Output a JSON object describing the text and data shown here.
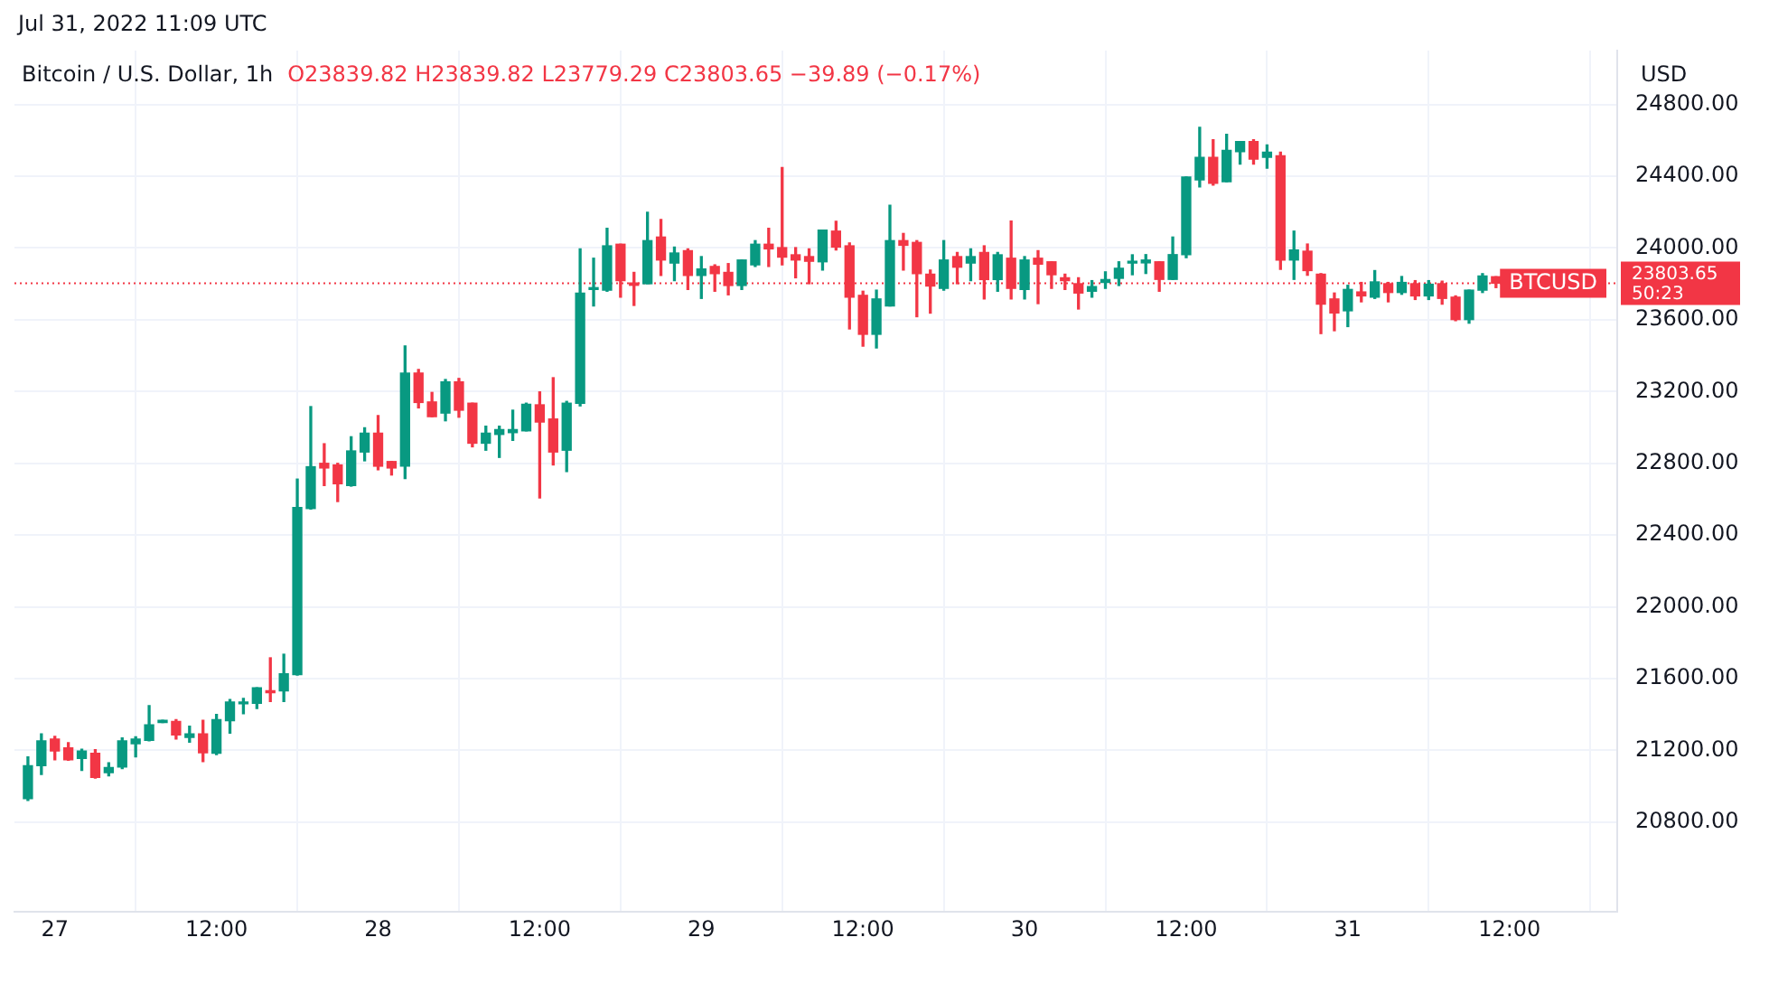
{
  "chart_data": {
    "type": "candlestick",
    "title": "Bitcoin / U.S. Dollar, 1h",
    "subtitle": "O23839.82 H23839.82 L23779.29 C23803.65 −39.89 (−0.17%)",
    "ylabel": "USD",
    "annotations": [
      "Jul 31, 2022 11:09 UTC",
      "23803.65",
      "50:23"
    ],
    "colors": [
      "#089981",
      "#089981",
      "#f23645",
      "#f23645",
      "#089981",
      "#f23645",
      "#089981",
      "#089981",
      "#089981",
      "#089981",
      "#089981",
      "#f23645",
      "#089981",
      "#f23645",
      "#089981",
      "#089981",
      "#089981",
      "#089981",
      "#f23645",
      "#089981",
      "#089981",
      "#089981",
      "#f23645",
      "#f23645",
      "#089981",
      "#089981",
      "#f23645",
      "#f23645",
      "#089981",
      "#f23645",
      "#f23645",
      "#089981",
      "#f23645",
      "#f23645",
      "#089981",
      "#089981",
      "#089981",
      "#089981",
      "#f23645",
      "#f23645",
      "#089981",
      "#089981",
      "#089981",
      "#089981",
      "#f23645",
      "#f23645",
      "#089981",
      "#f23645",
      "#089981",
      "#f23645",
      "#089981",
      "#f23645",
      "#f23645",
      "#089981",
      "#089981",
      "#f23645",
      "#f23645",
      "#f23645",
      "#f23645",
      "#089981",
      "#f23645",
      "#f23645",
      "#f23645",
      "#089981",
      "#089981",
      "#f23645",
      "#f23645",
      "#f23645",
      "#089981",
      "#f23645",
      "#089981",
      "#f23645",
      "#089981",
      "#f23645",
      "#089981",
      "#f23645",
      "#f23645",
      "#f23645",
      "#f23645",
      "#089981",
      "#089981",
      "#089981",
      "#089981",
      "#089981",
      "#f23645",
      "#089981",
      "#089981",
      "#089981",
      "#f23645",
      "#089981",
      "#089981",
      "#f23645",
      "#089981",
      "#f23645",
      "#089981",
      "#f23645",
      "#f23645",
      "#f23645",
      "#089981",
      "#f23645",
      "#089981",
      "#f23645",
      "#089981",
      "#f23645",
      "#089981",
      "#f23645",
      "#f23645",
      "#089981",
      "#089981",
      "#f23645"
    ],
    "x": [
      "2022-07-26T22:00",
      "2022-07-26T23:00",
      "2022-07-27T00:00",
      "2022-07-27T01:00",
      "2022-07-27T02:00",
      "2022-07-27T03:00",
      "2022-07-27T04:00",
      "2022-07-27T05:00",
      "2022-07-27T06:00",
      "2022-07-27T07:00",
      "2022-07-27T08:00",
      "2022-07-27T09:00",
      "2022-07-27T10:00",
      "2022-07-27T11:00",
      "2022-07-27T12:00",
      "2022-07-27T13:00",
      "2022-07-27T14:00",
      "2022-07-27T15:00",
      "2022-07-27T16:00",
      "2022-07-27T17:00",
      "2022-07-27T18:00",
      "2022-07-27T19:00",
      "2022-07-27T20:00",
      "2022-07-27T21:00",
      "2022-07-27T22:00",
      "2022-07-27T23:00",
      "2022-07-28T00:00",
      "2022-07-28T01:00",
      "2022-07-28T02:00",
      "2022-07-28T03:00",
      "2022-07-28T04:00",
      "2022-07-28T05:00",
      "2022-07-28T06:00",
      "2022-07-28T07:00",
      "2022-07-28T08:00",
      "2022-07-28T09:00",
      "2022-07-28T10:00",
      "2022-07-28T11:00",
      "2022-07-28T12:00",
      "2022-07-28T13:00",
      "2022-07-28T14:00",
      "2022-07-28T15:00",
      "2022-07-28T16:00",
      "2022-07-28T17:00",
      "2022-07-28T18:00",
      "2022-07-28T19:00",
      "2022-07-28T20:00",
      "2022-07-28T21:00",
      "2022-07-28T22:00",
      "2022-07-28T23:00",
      "2022-07-29T00:00",
      "2022-07-29T01:00",
      "2022-07-29T02:00",
      "2022-07-29T03:00",
      "2022-07-29T04:00",
      "2022-07-29T05:00",
      "2022-07-29T06:00",
      "2022-07-29T07:00",
      "2022-07-29T08:00",
      "2022-07-29T09:00",
      "2022-07-29T10:00",
      "2022-07-29T11:00",
      "2022-07-29T12:00",
      "2022-07-29T13:00",
      "2022-07-29T14:00",
      "2022-07-29T15:00",
      "2022-07-29T16:00",
      "2022-07-29T17:00",
      "2022-07-29T18:00",
      "2022-07-29T19:00",
      "2022-07-29T20:00",
      "2022-07-29T21:00",
      "2022-07-29T22:00",
      "2022-07-29T23:00",
      "2022-07-30T00:00",
      "2022-07-30T01:00",
      "2022-07-30T02:00",
      "2022-07-30T03:00",
      "2022-07-30T04:00",
      "2022-07-30T05:00",
      "2022-07-30T06:00",
      "2022-07-30T07:00",
      "2022-07-30T08:00",
      "2022-07-30T09:00",
      "2022-07-30T10:00",
      "2022-07-30T11:00",
      "2022-07-30T12:00",
      "2022-07-30T13:00",
      "2022-07-30T14:00",
      "2022-07-30T15:00",
      "2022-07-30T16:00",
      "2022-07-30T17:00",
      "2022-07-30T18:00",
      "2022-07-30T19:00",
      "2022-07-30T20:00",
      "2022-07-30T21:00",
      "2022-07-30T22:00",
      "2022-07-30T23:00",
      "2022-07-31T00:00",
      "2022-07-31T01:00",
      "2022-07-31T02:00",
      "2022-07-31T03:00",
      "2022-07-31T04:00",
      "2022-07-31T05:00",
      "2022-07-31T06:00",
      "2022-07-31T07:00",
      "2022-07-31T08:00",
      "2022-07-31T09:00",
      "2022-07-31T10:00",
      "2022-07-31T11:00"
    ],
    "ohlc": [
      [
        20931,
        21164,
        20921,
        21115
      ],
      [
        21115,
        21292,
        21066,
        21253
      ],
      [
        21263,
        21279,
        21148,
        21197
      ],
      [
        21214,
        21243,
        21145,
        21148
      ],
      [
        21155,
        21207,
        21089,
        21197
      ],
      [
        21184,
        21204,
        21046,
        21049
      ],
      [
        21076,
        21131,
        21059,
        21105
      ],
      [
        21108,
        21269,
        21099,
        21253
      ],
      [
        21237,
        21276,
        21164,
        21263
      ],
      [
        21256,
        21450,
        21253,
        21342
      ],
      [
        21355,
        21368,
        21355,
        21368
      ],
      [
        21361,
        21371,
        21263,
        21286
      ],
      [
        21273,
        21335,
        21246,
        21292
      ],
      [
        21292,
        21368,
        21138,
        21187
      ],
      [
        21184,
        21401,
        21177,
        21371
      ],
      [
        21365,
        21483,
        21296,
        21470
      ],
      [
        21460,
        21490,
        21404,
        21467
      ],
      [
        21463,
        21549,
        21434,
        21549
      ],
      [
        21526,
        21716,
        21473,
        21522
      ],
      [
        21532,
        21736,
        21473,
        21627
      ],
      [
        21622,
        22712,
        21620,
        22554
      ],
      [
        22548,
        23116,
        22545,
        22781
      ],
      [
        22800,
        22909,
        22676,
        22774
      ],
      [
        22791,
        22800,
        22587,
        22686
      ],
      [
        22676,
        22948,
        22673,
        22869
      ],
      [
        22863,
        22998,
        22814,
        22968
      ],
      [
        22968,
        23066,
        22764,
        22784
      ],
      [
        22810,
        22810,
        22735,
        22774
      ],
      [
        22784,
        23454,
        22715,
        23303
      ],
      [
        23303,
        23323,
        23109,
        23139
      ],
      [
        23142,
        23195,
        23060,
        23060
      ],
      [
        23080,
        23267,
        23037,
        23254
      ],
      [
        23254,
        23273,
        23057,
        23096
      ],
      [
        23135,
        23135,
        22892,
        22912
      ],
      [
        22912,
        23007,
        22873,
        22968
      ],
      [
        22961,
        23007,
        22833,
        22988
      ],
      [
        22971,
        23096,
        22928,
        22988
      ],
      [
        22981,
        23135,
        22981,
        23129
      ],
      [
        23126,
        23198,
        22607,
        23030
      ],
      [
        23047,
        23277,
        22791,
        22863
      ],
      [
        22873,
        23145,
        22754,
        23135
      ],
      [
        23135,
        23995,
        23120,
        23749
      ],
      [
        23769,
        23943,
        23677,
        23772
      ],
      [
        23765,
        24110,
        23759,
        24012
      ],
      [
        24021,
        24021,
        23726,
        23818
      ],
      [
        23805,
        23864,
        23680,
        23792
      ],
      [
        23801,
        24199,
        23801,
        24041
      ],
      [
        24061,
        24159,
        23847,
        23933
      ],
      [
        23916,
        24005,
        23818,
        23972
      ],
      [
        23985,
        23995,
        23769,
        23847
      ],
      [
        23847,
        23952,
        23719,
        23883
      ],
      [
        23897,
        23906,
        23759,
        23857
      ],
      [
        23864,
        23913,
        23739,
        23791
      ],
      [
        23791,
        23933,
        23769,
        23933
      ],
      [
        23906,
        24041,
        23897,
        24021
      ],
      [
        24021,
        24110,
        23897,
        23995
      ],
      [
        24002,
        24448,
        23906,
        23949
      ],
      [
        23962,
        24002,
        23834,
        23933
      ],
      [
        23952,
        23995,
        23801,
        23926
      ],
      [
        23923,
        24100,
        23877,
        24100
      ],
      [
        24094,
        24149,
        23989,
        24005
      ],
      [
        24012,
        24028,
        23549,
        23726
      ],
      [
        23736,
        23759,
        23453,
        23519
      ],
      [
        23519,
        23765,
        23443,
        23716
      ],
      [
        23677,
        24238,
        23677,
        24041
      ],
      [
        24041,
        24081,
        23877,
        24015
      ],
      [
        24031,
        24041,
        23617,
        23857
      ],
      [
        23854,
        23877,
        23637,
        23788
      ],
      [
        23775,
        24041,
        23765,
        23933
      ],
      [
        23952,
        23975,
        23801,
        23893
      ],
      [
        23916,
        23995,
        23818,
        23952
      ],
      [
        23975,
        24012,
        23716,
        23824
      ],
      [
        23824,
        23975,
        23759,
        23962
      ],
      [
        23943,
        24150,
        23716,
        23775
      ],
      [
        23769,
        23952,
        23716,
        23933
      ],
      [
        23943,
        23985,
        23690,
        23910
      ],
      [
        23923,
        23923,
        23775,
        23851
      ],
      [
        23834,
        23854,
        23769,
        23818
      ],
      [
        23801,
        23834,
        23660,
        23749
      ],
      [
        23759,
        23818,
        23726,
        23785
      ],
      [
        23808,
        23867,
        23775,
        23824
      ],
      [
        23831,
        23923,
        23791,
        23887
      ],
      [
        23916,
        23962,
        23851,
        23926
      ],
      [
        23917,
        23963,
        23858,
        23933
      ],
      [
        23923,
        23923,
        23759,
        23825
      ],
      [
        23825,
        24061,
        23825,
        23963
      ],
      [
        23963,
        24396,
        23946,
        24396
      ],
      [
        24380,
        24672,
        24340,
        24505
      ],
      [
        24505,
        24603,
        24350,
        24360
      ],
      [
        24370,
        24633,
        24370,
        24544
      ],
      [
        24537,
        24593,
        24468,
        24593
      ],
      [
        24593,
        24603,
        24468,
        24495
      ],
      [
        24505,
        24574,
        24445,
        24534
      ],
      [
        24514,
        24534,
        23881,
        23933
      ],
      [
        23933,
        24094,
        23825,
        23989
      ],
      [
        23982,
        24022,
        23848,
        23874
      ],
      [
        23854,
        23857,
        23523,
        23687
      ],
      [
        23716,
        23749,
        23539,
        23638
      ],
      [
        23650,
        23792,
        23562,
        23769
      ],
      [
        23755,
        23808,
        23700,
        23733
      ],
      [
        23726,
        23874,
        23719,
        23811
      ],
      [
        23801,
        23808,
        23700,
        23752
      ],
      [
        23752,
        23841,
        23742,
        23808
      ],
      [
        23801,
        23818,
        23713,
        23733
      ],
      [
        23733,
        23818,
        23713,
        23798
      ],
      [
        23801,
        23815,
        23687,
        23719
      ],
      [
        23726,
        23733,
        23595,
        23601
      ],
      [
        23601,
        23765,
        23581,
        23765
      ],
      [
        23765,
        23857,
        23752,
        23844
      ],
      [
        23839.82,
        23839.82,
        23779.29,
        23803.65
      ]
    ],
    "xlim": [
      "2022-07-26T21:00",
      "2022-07-31T20:00"
    ],
    "xticks": [
      {
        "value": "2022-07-27T00:00",
        "label": "27"
      },
      {
        "value": "2022-07-27T12:00",
        "label": "12:00"
      },
      {
        "value": "2022-07-28T00:00",
        "label": "28"
      },
      {
        "value": "2022-07-28T12:00",
        "label": "12:00"
      },
      {
        "value": "2022-07-29T00:00",
        "label": "29"
      },
      {
        "value": "2022-07-29T12:00",
        "label": "12:00"
      },
      {
        "value": "2022-07-30T00:00",
        "label": "30"
      },
      {
        "value": "2022-07-30T12:00",
        "label": "12:00"
      },
      {
        "value": "2022-07-31T00:00",
        "label": "31"
      },
      {
        "value": "2022-07-31T12:00",
        "label": "12:00"
      }
    ],
    "ylim": [
      20300,
      25100
    ],
    "yticks": [
      {
        "value": 20800,
        "label": "20800.00"
      },
      {
        "value": 21200,
        "label": "21200.00"
      },
      {
        "value": 21600,
        "label": "21600.00"
      },
      {
        "value": 22000,
        "label": "22000.00"
      },
      {
        "value": 22400,
        "label": "22400.00"
      },
      {
        "value": 22800,
        "label": "22800.00"
      },
      {
        "value": 23200,
        "label": "23200.00"
      },
      {
        "value": 23600,
        "label": "23600.00"
      },
      {
        "value": 24000,
        "label": "24000.00"
      },
      {
        "value": 24400,
        "label": "24400.00"
      },
      {
        "value": 24800,
        "label": "24800.00"
      }
    ],
    "ref_lines": [
      {
        "axis": "y",
        "value": 23803.65,
        "label": "BTCUSD",
        "color": "#f23645",
        "line_style": "dotted"
      }
    ],
    "grid": true,
    "legend": false
  }
}
